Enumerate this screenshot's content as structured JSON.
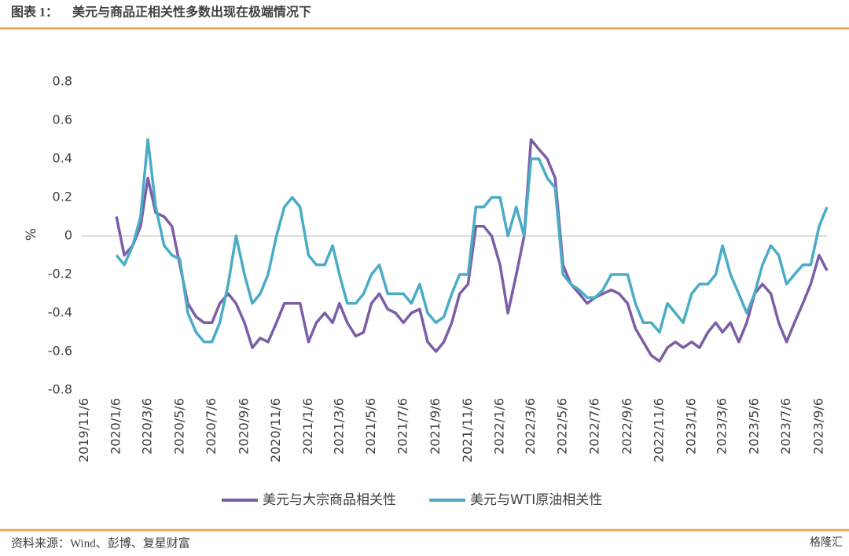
{
  "header": {
    "label": "图表 1：",
    "title": "美元与商品正相关性多数出现在极端情况下"
  },
  "chart_data": {
    "type": "line",
    "y_label": "%",
    "x": [
      "2020/1/6",
      "2020/1/21",
      "2020/2/6",
      "2020/2/21",
      "2020/3/6",
      "2020/3/21",
      "2020/4/6",
      "2020/4/21",
      "2020/5/6",
      "2020/5/21",
      "2020/6/6",
      "2020/6/21",
      "2020/7/6",
      "2020/7/21",
      "2020/8/6",
      "2020/8/21",
      "2020/9/6",
      "2020/9/21",
      "2020/10/6",
      "2020/10/21",
      "2020/11/6",
      "2020/11/21",
      "2020/12/6",
      "2020/12/21",
      "2021/1/6",
      "2021/1/21",
      "2021/2/6",
      "2021/2/21",
      "2021/3/6",
      "2021/3/21",
      "2021/4/6",
      "2021/4/21",
      "2021/5/6",
      "2021/5/21",
      "2021/6/6",
      "2021/6/21",
      "2021/7/6",
      "2021/7/21",
      "2021/8/6",
      "2021/8/21",
      "2021/9/6",
      "2021/9/21",
      "2021/10/6",
      "2021/10/21",
      "2021/11/6",
      "2021/11/21",
      "2021/12/6",
      "2021/12/21",
      "2022/1/6",
      "2022/1/21",
      "2022/2/6",
      "2022/2/21",
      "2022/3/6",
      "2022/3/21",
      "2022/4/6",
      "2022/4/21",
      "2022/5/6",
      "2022/5/21",
      "2022/6/6",
      "2022/6/21",
      "2022/7/6",
      "2022/7/21",
      "2022/8/6",
      "2022/8/21",
      "2022/9/6",
      "2022/9/21",
      "2022/10/6",
      "2022/10/21",
      "2022/11/6",
      "2022/11/21",
      "2022/12/6",
      "2022/12/21",
      "2023/1/6",
      "2023/1/21",
      "2023/2/6",
      "2023/2/21",
      "2023/3/6",
      "2023/3/21",
      "2023/4/6",
      "2023/4/21",
      "2023/5/6",
      "2023/5/21",
      "2023/6/6",
      "2023/6/21",
      "2023/7/6",
      "2023/7/21",
      "2023/8/6",
      "2023/8/21",
      "2023/9/6",
      "2023/9/21"
    ],
    "series": [
      {
        "name": "美元与大宗商品相关性",
        "color": "#7b5ea7",
        "values": [
          0.1,
          -0.1,
          -0.05,
          0.05,
          0.3,
          0.12,
          0.1,
          0.05,
          -0.15,
          -0.35,
          -0.42,
          -0.45,
          -0.45,
          -0.35,
          -0.3,
          -0.35,
          -0.45,
          -0.58,
          -0.53,
          -0.55,
          -0.45,
          -0.35,
          -0.35,
          -0.35,
          -0.55,
          -0.45,
          -0.4,
          -0.45,
          -0.35,
          -0.45,
          -0.52,
          -0.5,
          -0.35,
          -0.3,
          -0.38,
          -0.4,
          -0.45,
          -0.4,
          -0.38,
          -0.55,
          -0.6,
          -0.55,
          -0.45,
          -0.3,
          -0.25,
          0.05,
          0.05,
          0.0,
          -0.15,
          -0.4,
          -0.2,
          0.0,
          0.5,
          0.45,
          0.4,
          0.3,
          -0.15,
          -0.25,
          -0.3,
          -0.35,
          -0.32,
          -0.3,
          -0.28,
          -0.3,
          -0.35,
          -0.48,
          -0.55,
          -0.62,
          -0.65,
          -0.58,
          -0.55,
          -0.58,
          -0.55,
          -0.58,
          -0.5,
          -0.45,
          -0.5,
          -0.45,
          -0.55,
          -0.45,
          -0.3,
          -0.25,
          -0.3,
          -0.45,
          -0.55,
          -0.45,
          -0.35,
          -0.25,
          -0.1,
          -0.18
        ]
      },
      {
        "name": "美元与WTI原油相关性",
        "color": "#4bacc6",
        "values": [
          -0.1,
          -0.15,
          -0.05,
          0.1,
          0.5,
          0.15,
          -0.05,
          -0.1,
          -0.12,
          -0.4,
          -0.5,
          -0.55,
          -0.55,
          -0.45,
          -0.25,
          0.0,
          -0.2,
          -0.35,
          -0.3,
          -0.2,
          0.0,
          0.15,
          0.2,
          0.15,
          -0.1,
          -0.15,
          -0.15,
          -0.05,
          -0.2,
          -0.35,
          -0.35,
          -0.3,
          -0.2,
          -0.15,
          -0.3,
          -0.3,
          -0.3,
          -0.35,
          -0.25,
          -0.4,
          -0.45,
          -0.42,
          -0.3,
          -0.2,
          -0.2,
          0.15,
          0.15,
          0.2,
          0.2,
          0.0,
          0.15,
          0.0,
          0.4,
          0.4,
          0.3,
          0.25,
          -0.2,
          -0.25,
          -0.28,
          -0.32,
          -0.32,
          -0.28,
          -0.2,
          -0.2,
          -0.2,
          -0.35,
          -0.45,
          -0.45,
          -0.5,
          -0.35,
          -0.4,
          -0.45,
          -0.3,
          -0.25,
          -0.25,
          -0.2,
          -0.05,
          -0.2,
          -0.3,
          -0.4,
          -0.3,
          -0.15,
          -0.05,
          -0.1,
          -0.25,
          -0.2,
          -0.15,
          -0.15,
          0.05,
          0.15
        ]
      }
    ],
    "xlim": [
      "2019/11/1",
      "2023/9/21"
    ],
    "xticks": [
      "2019/11/6",
      "2020/1/6",
      "2020/3/6",
      "2020/5/6",
      "2020/7/6",
      "2020/9/6",
      "2020/11/6",
      "2021/1/6",
      "2021/3/6",
      "2021/5/6",
      "2021/7/6",
      "2021/9/6",
      "2021/11/6",
      "2022/1/6",
      "2022/3/6",
      "2022/5/6",
      "2022/7/6",
      "2022/9/6",
      "2022/11/6",
      "2023/1/6",
      "2023/3/6",
      "2023/5/6",
      "2023/7/6",
      "2023/9/6"
    ],
    "ylim": [
      -0.8,
      0.8
    ],
    "yticks": [
      0.8,
      0.6,
      0.4,
      0.2,
      0,
      -0.2,
      -0.4,
      -0.6,
      -0.8
    ],
    "legend": "bottom"
  },
  "footer": {
    "source": "资料来源：Wind、彭博、复星财富",
    "watermark": "格隆汇"
  }
}
